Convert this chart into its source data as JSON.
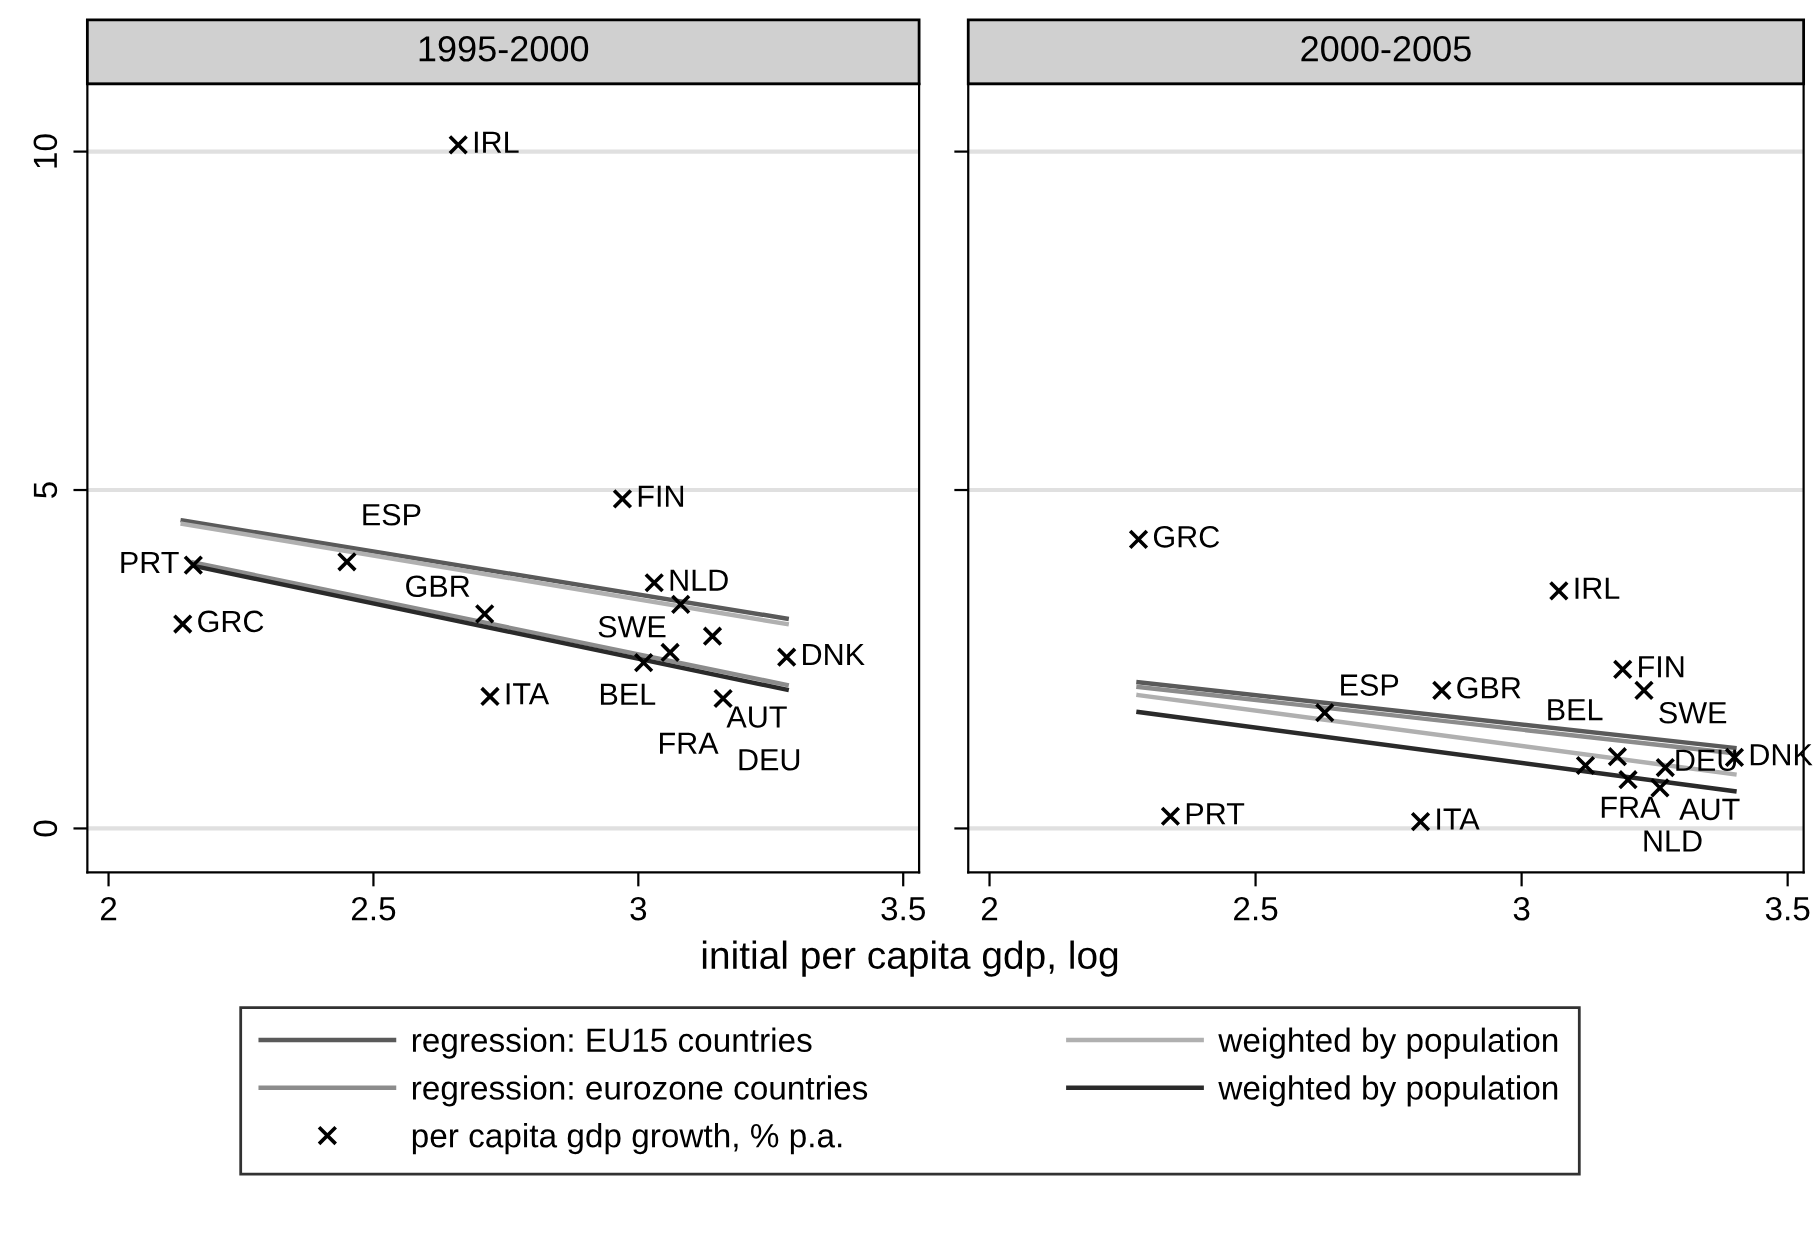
{
  "chart_data": [
    {
      "type": "scatter",
      "title": "1995-2000",
      "xlabel": "initial per capita gdp, log",
      "xlim": [
        1.96,
        3.53
      ],
      "xticks": [
        2,
        2.5,
        3,
        3.5
      ],
      "ylim": [
        -0.65,
        11.0
      ],
      "yticks": [
        0,
        5,
        10
      ],
      "grid": "y",
      "legend": "bottom",
      "series": [
        {
          "name": "regression: EU15 countries",
          "type": "line",
          "color": "#5a5a5a",
          "x": [
            2.14,
            3.28
          ],
          "values": [
            4.55,
            3.1
          ]
        },
        {
          "name": "regression: eurozone countries",
          "type": "line",
          "color": "#8c8c8c",
          "x": [
            2.16,
            3.28
          ],
          "values": [
            3.93,
            2.12
          ]
        },
        {
          "name": "per capita gdp growth, % p.a.",
          "marker": "cross",
          "color": "#000000",
          "x": [
            2.66,
            2.97,
            2.16,
            2.45,
            2.14,
            2.71,
            3.03,
            3.08,
            3.14,
            3.06,
            3.01,
            3.28,
            2.72,
            3.16
          ],
          "values": [
            10.1,
            4.87,
            3.89,
            3.94,
            3.02,
            3.17,
            3.63,
            3.31,
            2.84,
            2.6,
            2.45,
            2.53,
            1.95,
            1.92
          ]
        },
        {
          "name": "weighted by population",
          "type": "line",
          "color": "#b0b0b0",
          "x": [
            2.14,
            3.28
          ],
          "values": [
            4.5,
            3.02
          ]
        },
        {
          "name": "weighted by population",
          "type": "line",
          "color": "#2a2a2a",
          "x": [
            2.16,
            3.28
          ],
          "values": [
            3.88,
            2.05
          ]
        }
      ],
      "annotations": [
        {
          "text": "IRL",
          "x": 2.66,
          "y": 10.1
        },
        {
          "text": "FIN",
          "x": 2.97,
          "y": 4.87
        },
        {
          "text": "PRT",
          "x": 2.16,
          "y": 3.89
        },
        {
          "text": "ESP",
          "x": 2.45,
          "y": 3.94
        },
        {
          "text": "GRC",
          "x": 2.14,
          "y": 3.02
        },
        {
          "text": "GBR",
          "x": 2.71,
          "y": 3.17
        },
        {
          "text": "NLD",
          "x": 3.03,
          "y": 3.63
        },
        {
          "text": "SWE",
          "x": 3.08,
          "y": 3.31
        },
        {
          "text": "AUT",
          "x": 3.14,
          "y": 2.84
        },
        {
          "text": "BEL",
          "x": 3.06,
          "y": 2.6
        },
        {
          "text": "FRA",
          "x": 3.01,
          "y": 2.45
        },
        {
          "text": "DNK",
          "x": 3.28,
          "y": 2.53
        },
        {
          "text": "ITA",
          "x": 2.72,
          "y": 1.95
        },
        {
          "text": "DEU",
          "x": 3.16,
          "y": 1.92
        }
      ]
    },
    {
      "type": "scatter",
      "title": "2000-2005",
      "xlim": [
        1.96,
        3.53
      ],
      "xticks": [
        2,
        2.5,
        3,
        3.5
      ],
      "ylim": [
        -0.65,
        11.0
      ],
      "tick_labels": "x",
      "grid": "y",
      "series": [
        {
          "type": "line",
          "color": "#5a5a5a",
          "x": [
            2.28,
            3.4
          ],
          "values": [
            2.16,
            1.19
          ]
        },
        {
          "type": "line",
          "color": "#8c8c8c",
          "x": [
            2.28,
            3.4
          ],
          "values": [
            2.09,
            1.11
          ]
        },
        {
          "type": "line",
          "color": "#b0b0b0",
          "x": [
            2.28,
            3.4
          ],
          "values": [
            1.97,
            0.8
          ]
        },
        {
          "type": "line",
          "color": "#2a2a2a",
          "x": [
            2.28,
            3.4
          ],
          "values": [
            1.72,
            0.55
          ]
        },
        {
          "marker": "cross",
          "color": "#000000",
          "x": [
            2.28,
            3.07,
            3.19,
            3.23,
            2.85,
            2.63,
            3.4,
            2.34,
            2.81,
            3.12,
            3.18,
            3.2,
            3.27,
            3.26
          ],
          "values": [
            4.27,
            3.51,
            2.35,
            2.04,
            2.04,
            1.71,
            1.05,
            0.18,
            0.1,
            0.93,
            1.06,
            0.72,
            0.9,
            0.6
          ]
        }
      ],
      "annotations": [
        {
          "text": "GRC",
          "x": 2.28,
          "y": 4.27
        },
        {
          "text": "IRL",
          "x": 3.07,
          "y": 3.51
        },
        {
          "text": "FIN",
          "x": 3.19,
          "y": 2.35
        },
        {
          "text": "SWE",
          "x": 3.23,
          "y": 2.04
        },
        {
          "text": "GBR",
          "x": 2.85,
          "y": 2.04
        },
        {
          "text": "ESP",
          "x": 2.63,
          "y": 1.71
        },
        {
          "text": "DNK",
          "x": 3.4,
          "y": 1.05
        },
        {
          "text": "PRT",
          "x": 2.34,
          "y": 0.18
        },
        {
          "text": "ITA",
          "x": 2.81,
          "y": 0.1
        },
        {
          "text": "FRA",
          "x": 3.12,
          "y": 0.93
        },
        {
          "text": "BEL",
          "x": 3.18,
          "y": 1.06
        },
        {
          "text": "NLD",
          "x": 3.2,
          "y": 0.72
        },
        {
          "text": "AUT",
          "x": 3.27,
          "y": 0.9
        },
        {
          "text": "DEU",
          "x": 3.26,
          "y": 0.6
        }
      ]
    }
  ]
}
